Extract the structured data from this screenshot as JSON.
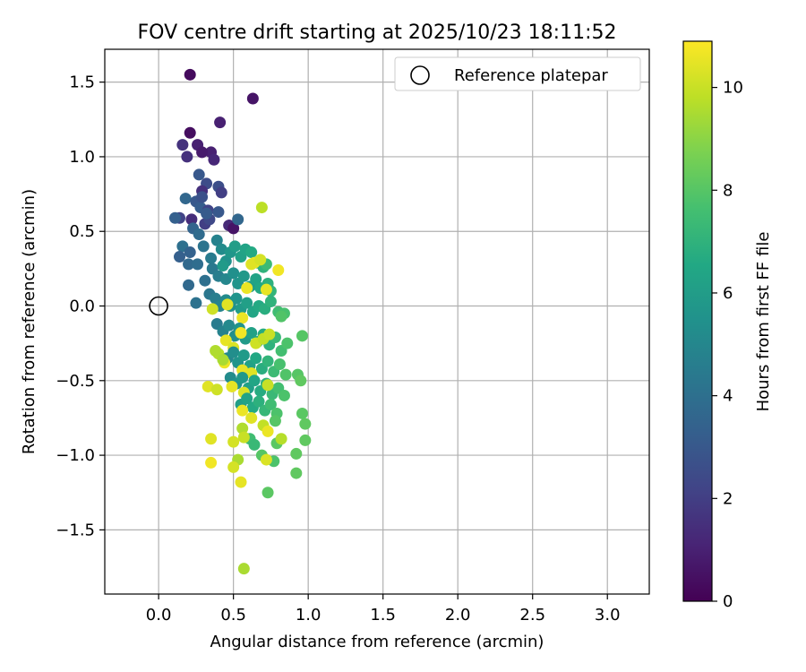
{
  "chart_data": {
    "type": "scatter",
    "title": "FOV centre drift starting at 2025/10/23 18:11:52",
    "xlabel": "Angular distance from reference (arcmin)",
    "ylabel": "Rotation from reference (arcmin)",
    "xlim": [
      -0.36,
      3.28
    ],
    "ylim": [
      -1.93,
      1.72
    ],
    "xticks": [
      0.0,
      0.5,
      1.0,
      1.5,
      2.0,
      2.5,
      3.0
    ],
    "xtick_labels": [
      "0.0",
      "0.5",
      "1.0",
      "1.5",
      "2.0",
      "2.5",
      "3.0"
    ],
    "yticks": [
      1.5,
      1.0,
      0.5,
      0.0,
      -0.5,
      -1.0,
      -1.5
    ],
    "ytick_labels": [
      "1.5",
      "1.0",
      "0.5",
      "0.0",
      "−0.5",
      "−1.0",
      "−1.5"
    ],
    "grid": true,
    "legend": {
      "position": "top-right",
      "entries": [
        "Reference platepar"
      ]
    },
    "reference_point": {
      "x": 0.0,
      "y": 0.0
    },
    "colorbar": {
      "label": "Hours from first FF file",
      "range": [
        0,
        10.9
      ],
      "ticks": [
        0,
        2,
        4,
        6,
        8,
        10
      ],
      "tick_labels": [
        "0",
        "2",
        "4",
        "6",
        "8",
        "10"
      ],
      "colormap": "viridis"
    },
    "series": [
      {
        "name": "FOV centre drift",
        "points": [
          [
            0.21,
            1.55,
            0.3
          ],
          [
            0.63,
            1.39,
            0.6
          ],
          [
            0.21,
            1.16,
            0.4
          ],
          [
            0.41,
            1.23,
            1.0
          ],
          [
            0.16,
            1.08,
            1.6
          ],
          [
            0.26,
            1.08,
            1.0
          ],
          [
            0.35,
            1.03,
            1.0
          ],
          [
            0.19,
            1.0,
            1.5
          ],
          [
            0.29,
            1.03,
            0.8
          ],
          [
            0.37,
            0.98,
            1.2
          ],
          [
            0.27,
            0.88,
            3.0
          ],
          [
            0.32,
            0.82,
            2.5
          ],
          [
            0.4,
            0.8,
            2.6
          ],
          [
            0.42,
            0.76,
            2.0
          ],
          [
            0.29,
            0.77,
            1.5
          ],
          [
            0.18,
            0.72,
            3.6
          ],
          [
            0.25,
            0.7,
            3.0
          ],
          [
            0.28,
            0.66,
            3.2
          ],
          [
            0.33,
            0.64,
            2.2
          ],
          [
            0.4,
            0.63,
            3.0
          ],
          [
            0.14,
            0.59,
            2.2
          ],
          [
            0.22,
            0.58,
            1.4
          ],
          [
            0.31,
            0.55,
            2.0
          ],
          [
            0.34,
            0.58,
            2.4
          ],
          [
            0.47,
            0.54,
            1.3
          ],
          [
            0.5,
            0.52,
            0.6
          ],
          [
            0.53,
            0.58,
            3.6
          ],
          [
            0.69,
            0.66,
            9.8
          ],
          [
            0.11,
            0.59,
            3.3
          ],
          [
            0.23,
            0.52,
            3.5
          ],
          [
            0.27,
            0.48,
            3.8
          ],
          [
            0.16,
            0.4,
            4.0
          ],
          [
            0.21,
            0.36,
            3.4
          ],
          [
            0.14,
            0.33,
            3.3
          ],
          [
            0.2,
            0.28,
            3.7
          ],
          [
            0.26,
            0.28,
            3.9
          ],
          [
            0.3,
            0.4,
            4.2
          ],
          [
            0.35,
            0.32,
            4.5
          ],
          [
            0.39,
            0.44,
            4.8
          ],
          [
            0.42,
            0.38,
            5.2
          ],
          [
            0.45,
            0.3,
            5.5
          ],
          [
            0.48,
            0.36,
            5.7
          ],
          [
            0.51,
            0.4,
            6.0
          ],
          [
            0.55,
            0.33,
            6.2
          ],
          [
            0.58,
            0.38,
            6.3
          ],
          [
            0.62,
            0.36,
            6.6
          ],
          [
            0.66,
            0.29,
            6.8
          ],
          [
            0.7,
            0.26,
            7.0
          ],
          [
            0.72,
            0.28,
            7.4
          ],
          [
            0.36,
            0.25,
            4.4
          ],
          [
            0.4,
            0.2,
            4.6
          ],
          [
            0.45,
            0.18,
            5.0
          ],
          [
            0.5,
            0.22,
            5.4
          ],
          [
            0.53,
            0.15,
            5.6
          ],
          [
            0.57,
            0.2,
            5.8
          ],
          [
            0.61,
            0.13,
            6.0
          ],
          [
            0.65,
            0.18,
            6.3
          ],
          [
            0.68,
            0.12,
            6.5
          ],
          [
            0.73,
            0.15,
            6.9
          ],
          [
            0.75,
            0.1,
            7.1
          ],
          [
            0.64,
            0.29,
            10.6
          ],
          [
            0.62,
            0.28,
            10.4
          ],
          [
            0.8,
            0.24,
            10.7
          ],
          [
            0.68,
            0.31,
            10.2
          ],
          [
            0.59,
            0.12,
            10.6
          ],
          [
            0.72,
            0.11,
            10.5
          ],
          [
            0.2,
            0.14,
            3.7
          ],
          [
            0.31,
            0.17,
            4.0
          ],
          [
            0.34,
            0.08,
            4.3
          ],
          [
            0.25,
            0.02,
            4.1
          ],
          [
            0.38,
            0.05,
            4.6
          ],
          [
            0.41,
            0.0,
            4.9
          ],
          [
            0.45,
            0.04,
            5.2
          ],
          [
            0.48,
            0.0,
            5.4
          ],
          [
            0.52,
            0.05,
            5.6
          ],
          [
            0.55,
            -0.02,
            5.9
          ],
          [
            0.59,
            0.02,
            6.1
          ],
          [
            0.63,
            -0.04,
            6.4
          ],
          [
            0.67,
            0.0,
            6.6
          ],
          [
            0.71,
            -0.02,
            6.8
          ],
          [
            0.75,
            0.03,
            7.0
          ],
          [
            0.8,
            -0.04,
            7.5
          ],
          [
            0.84,
            -0.05,
            7.7
          ],
          [
            0.82,
            -0.07,
            7.9
          ],
          [
            0.36,
            -0.02,
            10.1
          ],
          [
            0.46,
            0.01,
            10.4
          ],
          [
            0.56,
            -0.08,
            10.6
          ],
          [
            0.39,
            -0.12,
            4.5
          ],
          [
            0.43,
            -0.17,
            4.8
          ],
          [
            0.47,
            -0.13,
            5.1
          ],
          [
            0.51,
            -0.2,
            5.3
          ],
          [
            0.54,
            -0.15,
            5.6
          ],
          [
            0.58,
            -0.22,
            5.9
          ],
          [
            0.62,
            -0.18,
            6.2
          ],
          [
            0.66,
            -0.24,
            6.4
          ],
          [
            0.7,
            -0.19,
            6.7
          ],
          [
            0.74,
            -0.26,
            7.0
          ],
          [
            0.78,
            -0.21,
            7.3
          ],
          [
            0.82,
            -0.3,
            7.6
          ],
          [
            0.86,
            -0.25,
            7.8
          ],
          [
            0.96,
            -0.2,
            8.0
          ],
          [
            0.45,
            -0.23,
            10.5
          ],
          [
            0.5,
            -0.28,
            10.3
          ],
          [
            0.55,
            -0.18,
            10.7
          ],
          [
            0.65,
            -0.25,
            10.1
          ],
          [
            0.7,
            -0.22,
            9.9
          ],
          [
            0.74,
            -0.19,
            10.0
          ],
          [
            0.4,
            -0.32,
            9.7
          ],
          [
            0.46,
            -0.35,
            5.0
          ],
          [
            0.5,
            -0.31,
            5.3
          ],
          [
            0.53,
            -0.38,
            5.6
          ],
          [
            0.57,
            -0.33,
            5.9
          ],
          [
            0.61,
            -0.4,
            6.2
          ],
          [
            0.65,
            -0.35,
            6.5
          ],
          [
            0.69,
            -0.42,
            6.8
          ],
          [
            0.73,
            -0.37,
            7.1
          ],
          [
            0.77,
            -0.44,
            7.4
          ],
          [
            0.81,
            -0.39,
            7.7
          ],
          [
            0.85,
            -0.46,
            7.9
          ],
          [
            0.44,
            -0.38,
            10.6
          ],
          [
            0.38,
            -0.3,
            9.6
          ],
          [
            0.56,
            -0.43,
            10.5
          ],
          [
            0.62,
            -0.45,
            10.4
          ],
          [
            0.48,
            -0.48,
            5.2
          ],
          [
            0.52,
            -0.52,
            5.5
          ],
          [
            0.56,
            -0.48,
            5.8
          ],
          [
            0.6,
            -0.55,
            6.1
          ],
          [
            0.64,
            -0.5,
            6.4
          ],
          [
            0.68,
            -0.57,
            6.7
          ],
          [
            0.72,
            -0.52,
            7.0
          ],
          [
            0.76,
            -0.59,
            7.3
          ],
          [
            0.8,
            -0.55,
            7.6
          ],
          [
            0.84,
            -0.6,
            7.8
          ],
          [
            0.93,
            -0.46,
            8.0
          ],
          [
            0.95,
            -0.5,
            8.2
          ],
          [
            0.33,
            -0.54,
            10.4
          ],
          [
            0.39,
            -0.56,
            10.1
          ],
          [
            0.49,
            -0.54,
            10.5
          ],
          [
            0.57,
            -0.58,
            10.3
          ],
          [
            0.73,
            -0.53,
            10.0
          ],
          [
            0.55,
            -0.66,
            6.0
          ],
          [
            0.59,
            -0.62,
            6.3
          ],
          [
            0.63,
            -0.68,
            6.6
          ],
          [
            0.67,
            -0.64,
            6.9
          ],
          [
            0.71,
            -0.7,
            7.2
          ],
          [
            0.75,
            -0.66,
            7.5
          ],
          [
            0.79,
            -0.72,
            7.8
          ],
          [
            0.96,
            -0.72,
            8.1
          ],
          [
            0.98,
            -0.79,
            8.2
          ],
          [
            0.56,
            -0.7,
            10.6
          ],
          [
            0.62,
            -0.75,
            10.4
          ],
          [
            0.7,
            -0.8,
            9.9
          ],
          [
            0.78,
            -0.77,
            8.0
          ],
          [
            0.61,
            -0.89,
            7.5
          ],
          [
            0.64,
            -0.93,
            7.3
          ],
          [
            0.73,
            -0.84,
            10.6
          ],
          [
            0.79,
            -0.92,
            8.1
          ],
          [
            0.82,
            -0.89,
            9.7
          ],
          [
            0.98,
            -0.9,
            8.2
          ],
          [
            0.5,
            -0.91,
            10.2
          ],
          [
            0.56,
            -0.82,
            9.6
          ],
          [
            0.57,
            -0.88,
            10.0
          ],
          [
            0.35,
            -0.89,
            10.4
          ],
          [
            0.35,
            -1.05,
            10.7
          ],
          [
            0.53,
            -1.03,
            9.5
          ],
          [
            0.5,
            -1.08,
            10.2
          ],
          [
            0.69,
            -1.0,
            8.0
          ],
          [
            0.77,
            -1.04,
            7.8
          ],
          [
            0.72,
            -1.03,
            10.3
          ],
          [
            0.92,
            -0.99,
            8.2
          ],
          [
            0.92,
            -1.12,
            8.2
          ],
          [
            0.55,
            -1.18,
            10.5
          ],
          [
            0.73,
            -1.25,
            8.1
          ],
          [
            0.57,
            -1.76,
            9.5
          ],
          [
            0.43,
            -0.36,
            9.5
          ],
          [
            0.43,
            0.27,
            5.9
          ],
          [
            0.29,
            0.73,
            2.7
          ],
          [
            0.32,
            0.62,
            3.1
          ]
        ]
      }
    ]
  }
}
